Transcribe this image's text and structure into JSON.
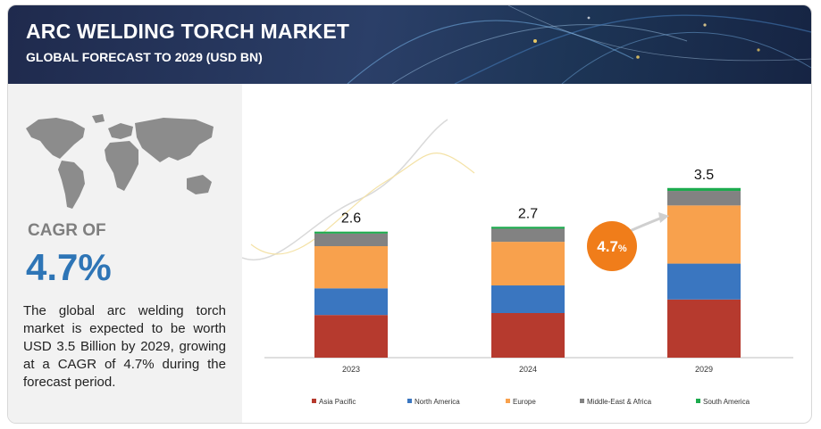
{
  "header": {
    "title": "ARC WELDING TORCH MARKET",
    "subtitle": "GLOBAL FORECAST TO 2029 (USD BN)"
  },
  "summary": {
    "cagr_label": "CAGR OF",
    "cagr_value": "4.7%",
    "description": "The global arc welding torch market is expected to be worth USD 3.5 Billion by 2029, growing at a CAGR of 4.7% during the forecast period."
  },
  "growth_badge": {
    "value": "4.7",
    "unit": "%"
  },
  "colors": {
    "accent": "#2e75b6",
    "badge": "#f07d1a",
    "banner": "#1f2a4d"
  },
  "chart_data": {
    "type": "bar",
    "stacked": true,
    "categories": [
      "2023",
      "2024",
      "2029"
    ],
    "totals": [
      2.6,
      2.7,
      3.5
    ],
    "total_labels": [
      "2.6",
      "2.7",
      "3.5"
    ],
    "ylim": [
      0,
      4.6
    ],
    "legend_position": "bottom",
    "grid": false,
    "series": [
      {
        "name": "Asia Pacific",
        "color": "#b63a2e",
        "values": [
          0.88,
          0.92,
          1.2
        ]
      },
      {
        "name": "North America",
        "color": "#3a76c0",
        "values": [
          0.55,
          0.57,
          0.74
        ]
      },
      {
        "name": "Europe",
        "color": "#f8a14d",
        "values": [
          0.87,
          0.9,
          1.2
        ]
      },
      {
        "name": "Middle-East & Africa",
        "color": "#828282",
        "values": [
          0.26,
          0.27,
          0.3
        ]
      },
      {
        "name": "South America",
        "color": "#1dab4e",
        "values": [
          0.04,
          0.04,
          0.06
        ]
      }
    ]
  }
}
